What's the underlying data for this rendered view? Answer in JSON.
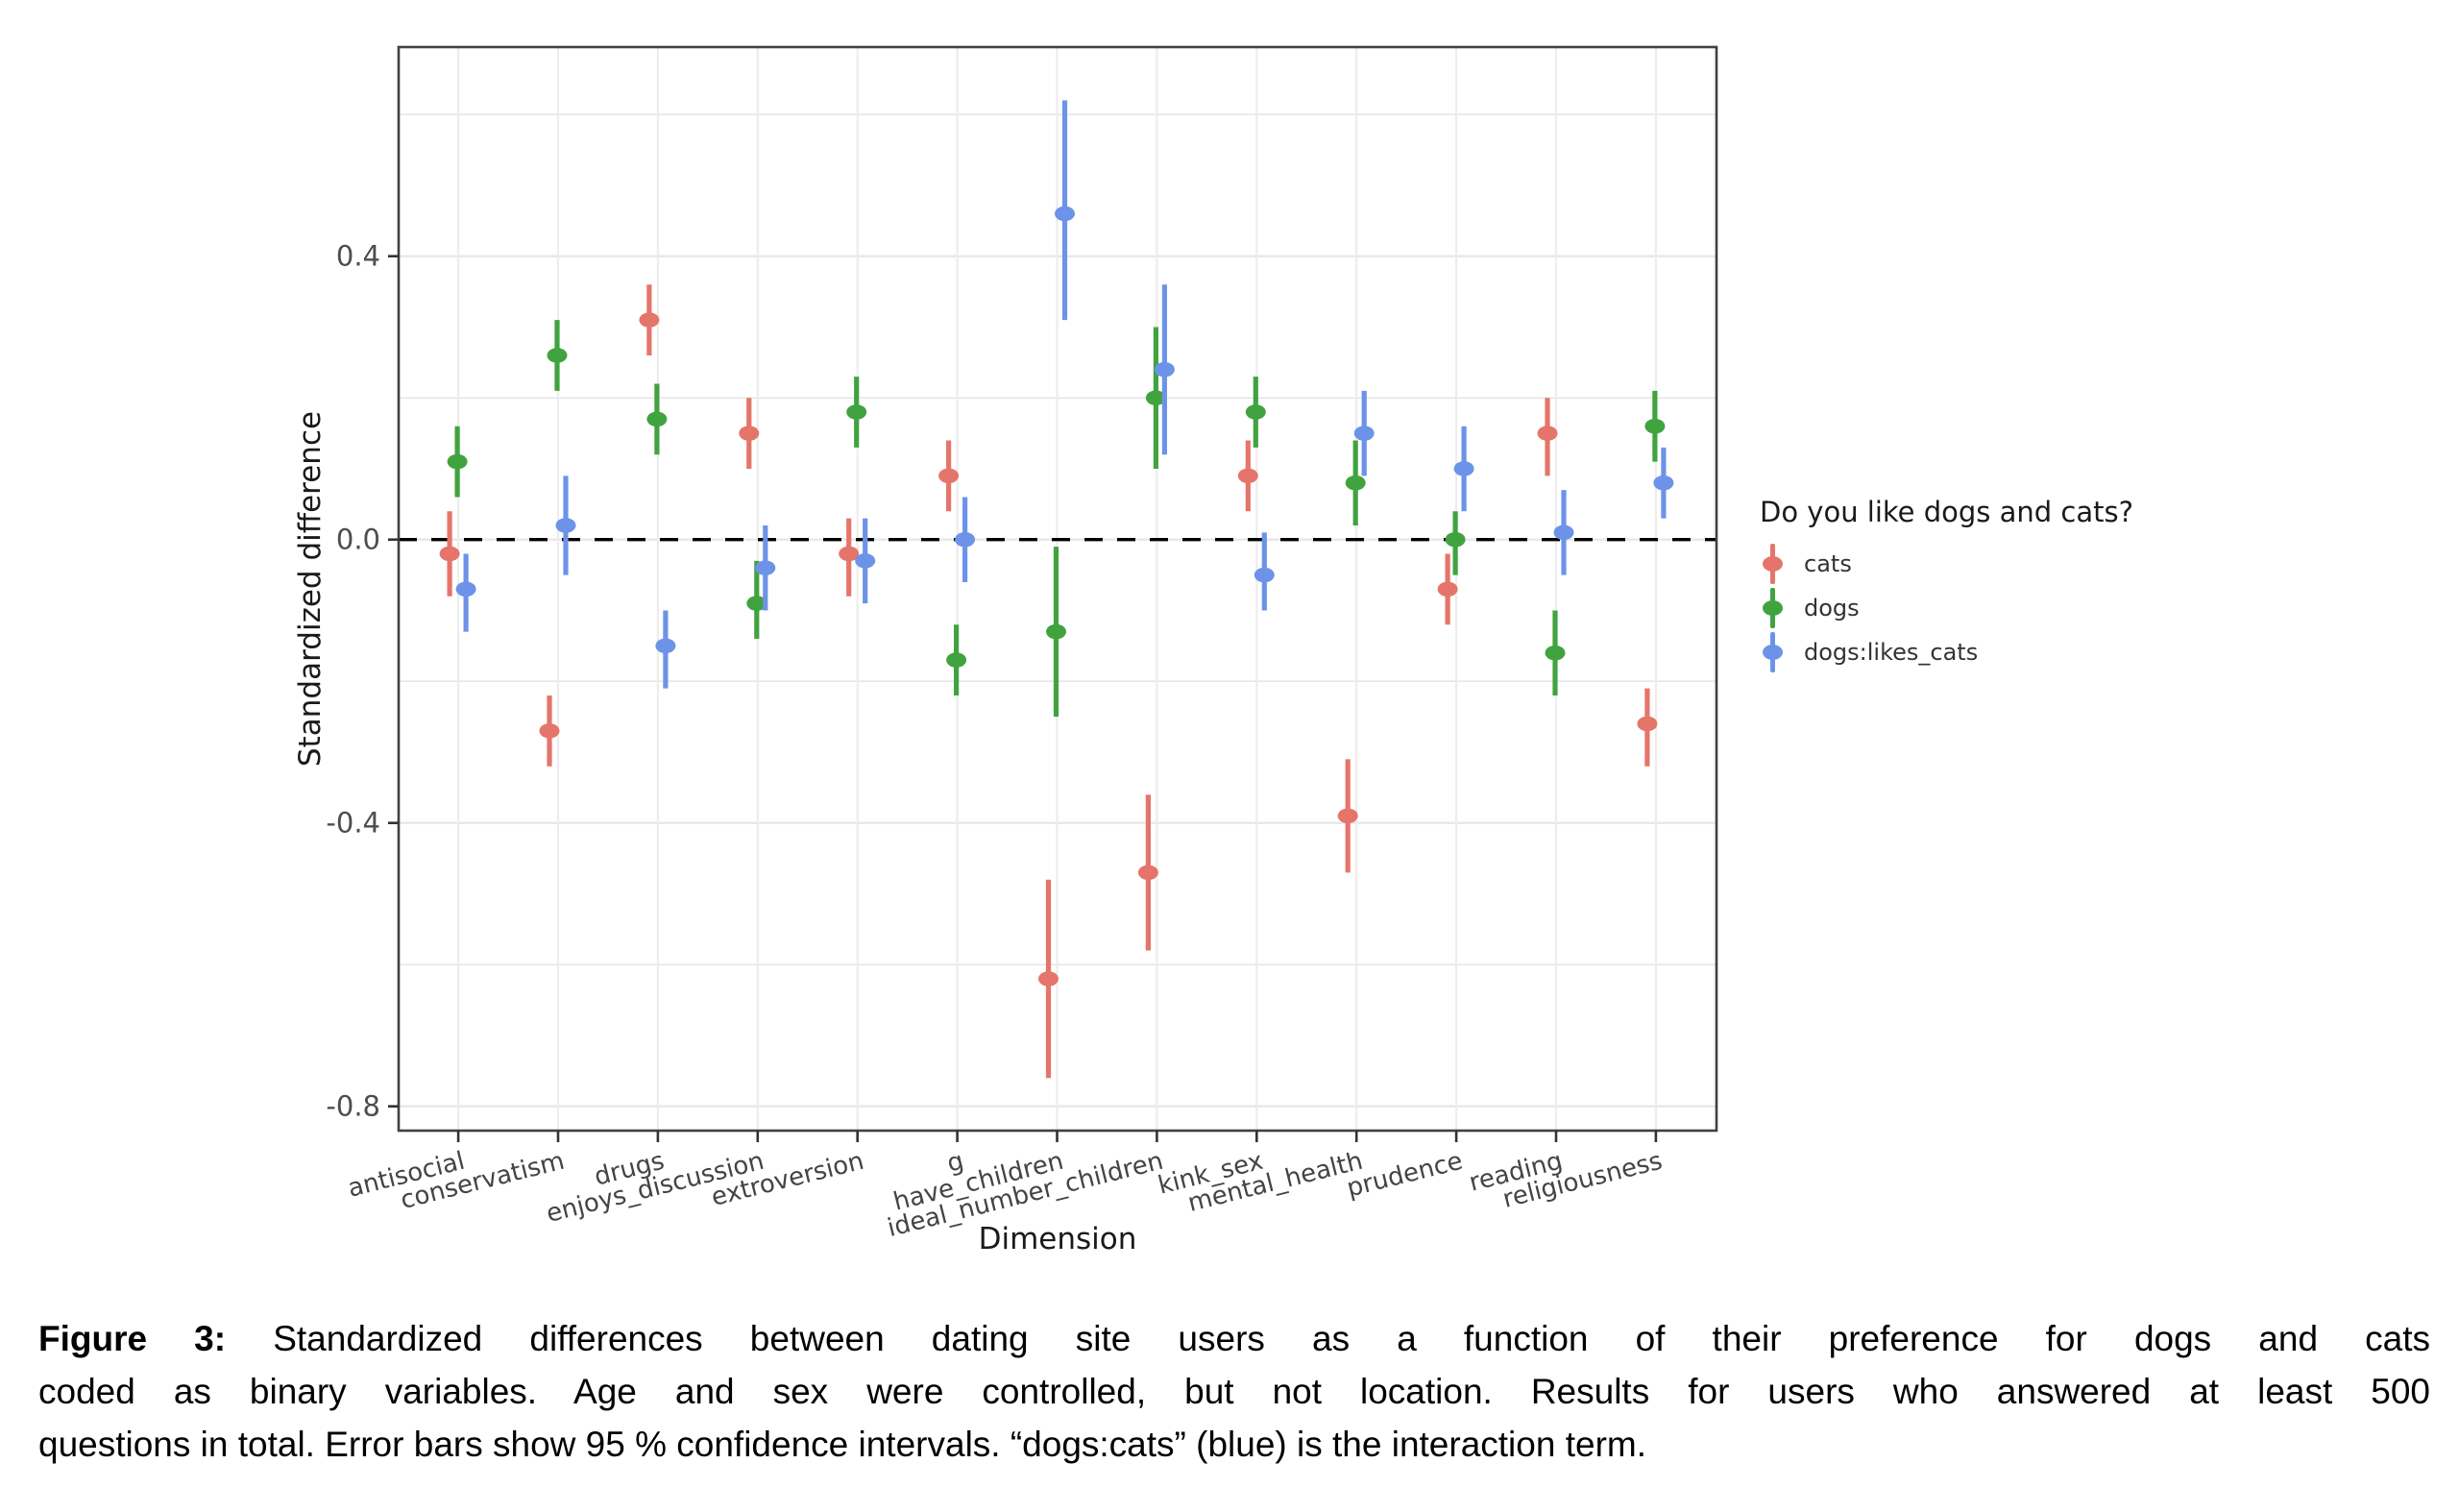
{
  "figure": {
    "y_axis": {
      "title": "Standardized difference",
      "tick_labels": [
        "0.4",
        "0.0",
        "-0.4",
        "-0.8"
      ],
      "tick_values": [
        0.4,
        0.0,
        -0.4,
        -0.8
      ]
    },
    "x_axis": {
      "title": "Dimension"
    },
    "legend": {
      "title": "Do you like dogs and cats?",
      "items": [
        {
          "label": "cats",
          "color": "#E5756B"
        },
        {
          "label": "dogs",
          "color": "#41A33F"
        },
        {
          "label": "dogs:likes_cats",
          "color": "#6D93E8"
        }
      ]
    },
    "colors": {
      "background": "#FFFFFF",
      "grid": "#E7E7E7",
      "panel_border": "#404040",
      "zero_line": "#000000",
      "axis_text": "#4D4D4D"
    },
    "chart_data": {
      "type": "scatter",
      "subtype": "pointrange-dotplot-with-error-bars",
      "error_bars": "95% confidence intervals",
      "grid": "on",
      "legend_position": "right",
      "xlabel": "Dimension",
      "ylabel": "Standardized difference",
      "ylim": [
        -0.83,
        0.7
      ],
      "y_gridlines": [
        0.6,
        0.4,
        0.2,
        0.0,
        -0.2,
        -0.4,
        -0.6,
        -0.8
      ],
      "zero_reference_line": 0.0,
      "categories": [
        "antisocial",
        "conservatism",
        "drugs",
        "enjoys_discussion",
        "extroversion",
        "g",
        "have_children",
        "ideal_number_children",
        "kink_sex",
        "mental_health",
        "prudence",
        "reading",
        "religiousness"
      ],
      "series": [
        {
          "name": "cats",
          "color": "#E5756B",
          "values": [
            -0.02,
            -0.27,
            0.31,
            0.15,
            -0.02,
            0.09,
            -0.62,
            -0.47,
            0.09,
            -0.39,
            -0.07,
            0.15,
            -0.26
          ],
          "ci_low": [
            -0.08,
            -0.32,
            0.26,
            0.1,
            -0.08,
            0.04,
            -0.76,
            -0.58,
            0.04,
            -0.47,
            -0.12,
            0.09,
            -0.32
          ],
          "ci_high": [
            0.04,
            -0.22,
            0.36,
            0.2,
            0.03,
            0.14,
            -0.48,
            -0.36,
            0.14,
            -0.31,
            -0.02,
            0.2,
            -0.21
          ]
        },
        {
          "name": "dogs",
          "color": "#41A33F",
          "values": [
            0.11,
            0.26,
            0.17,
            -0.09,
            0.18,
            -0.17,
            -0.13,
            0.2,
            0.18,
            0.08,
            0.0,
            -0.16,
            0.16
          ],
          "ci_low": [
            0.06,
            0.21,
            0.12,
            -0.14,
            0.13,
            -0.22,
            -0.25,
            0.1,
            0.13,
            0.02,
            -0.05,
            -0.22,
            0.11
          ],
          "ci_high": [
            0.16,
            0.31,
            0.22,
            -0.03,
            0.23,
            -0.12,
            -0.01,
            0.3,
            0.23,
            0.14,
            0.04,
            -0.1,
            0.21
          ]
        },
        {
          "name": "dogs:likes_cats",
          "color": "#6D93E8",
          "values": [
            -0.07,
            0.02,
            -0.15,
            -0.04,
            -0.03,
            0.0,
            0.46,
            0.24,
            -0.05,
            0.15,
            0.1,
            0.01,
            0.08
          ],
          "ci_low": [
            -0.13,
            -0.05,
            -0.21,
            -0.1,
            -0.09,
            -0.06,
            0.31,
            0.12,
            -0.1,
            0.09,
            0.04,
            -0.05,
            0.03
          ],
          "ci_high": [
            -0.02,
            0.09,
            -0.1,
            0.02,
            0.03,
            0.06,
            0.62,
            0.36,
            0.01,
            0.21,
            0.16,
            0.07,
            0.13
          ]
        }
      ]
    }
  },
  "caption": {
    "label": "Figure 3:",
    "lines": [
      "Standardized differences between dating site users as a function of their preference for dogs and cats",
      "coded as binary variables. Age and sex were controlled, but not location. Results for users who answered at least 500",
      "questions in total. Error bars show 95 % confidence intervals. “dogs:cats” (blue) is the interaction term."
    ]
  }
}
